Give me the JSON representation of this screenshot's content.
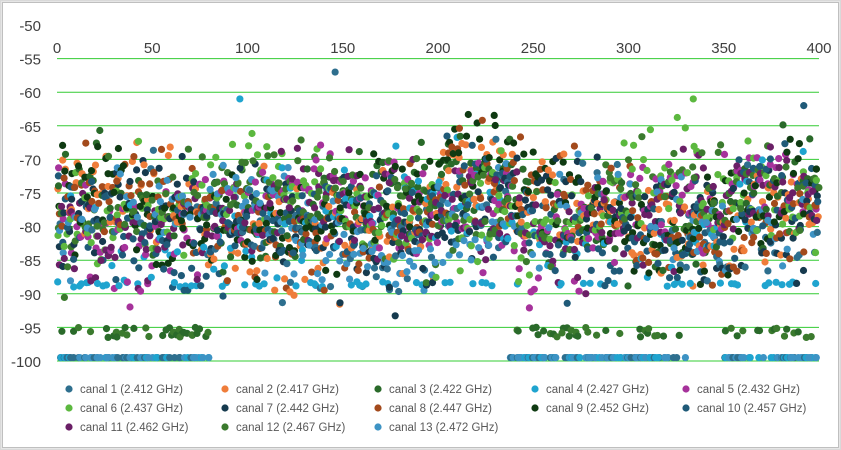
{
  "chart_data": {
    "type": "scatter",
    "title": "",
    "xlabel": "",
    "ylabel": "",
    "xlim": [
      0,
      400
    ],
    "ylim": [
      -100,
      -50
    ],
    "xticks": [
      0,
      50,
      100,
      150,
      200,
      250,
      300,
      350,
      400
    ],
    "yticks": [
      -50,
      -55,
      -60,
      -65,
      -70,
      -75,
      -80,
      -85,
      -90,
      -95,
      -100
    ],
    "x_axis_position": "top",
    "grid": "horizontal",
    "grid_color": "#33cc33",
    "legend_position": "bottom",
    "series": [
      {
        "name": "canal 1 (2.412 GHz)",
        "color": "#2e6f8e"
      },
      {
        "name": "canal 2 (2.417 GHz)",
        "color": "#ef7d3a"
      },
      {
        "name": "canal 3 (2.422 GHz)",
        "color": "#2a6a2a"
      },
      {
        "name": "canal 4 (2.427 GHz)",
        "color": "#1fa4cf"
      },
      {
        "name": "canal 5 (2.432 GHz)",
        "color": "#a6329b"
      },
      {
        "name": "canal 6 (2.437 GHz)",
        "color": "#5cb83f"
      },
      {
        "name": "canal 7 (2.442 GHz)",
        "color": "#163a4e"
      },
      {
        "name": "canal 8 (2.447 GHz)",
        "color": "#a34a1c"
      },
      {
        "name": "canal 9 (2.452 GHz)",
        "color": "#0f3a12"
      },
      {
        "name": "canal 10 (2.457 GHz)",
        "color": "#1f5a78"
      },
      {
        "name": "canal 11 (2.462 GHz)",
        "color": "#6a1f66"
      },
      {
        "name": "canal 12 (2.467 GHz)",
        "color": "#3b7a2e"
      },
      {
        "name": "canal 13 (2.472 GHz)",
        "color": "#3d93c4"
      }
    ],
    "annotations": [
      {
        "series": 0,
        "x": 146,
        "y": -57
      },
      {
        "series": 5,
        "x": 334,
        "y": -61
      },
      {
        "series": 3,
        "x": 96,
        "y": -61
      },
      {
        "series": 9,
        "x": 392,
        "y": -62
      }
    ]
  }
}
